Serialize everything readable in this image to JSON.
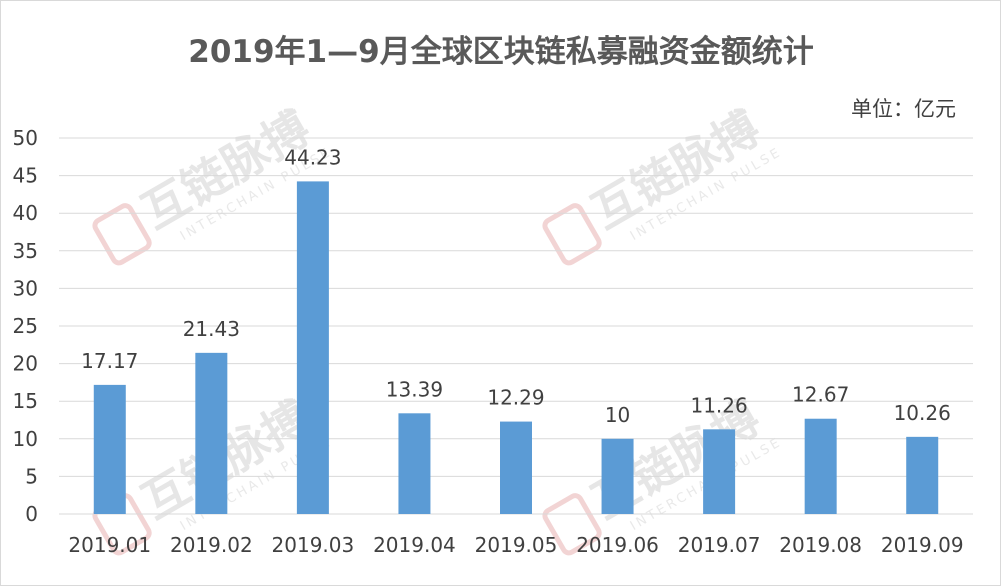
{
  "chart_data": {
    "type": "bar",
    "title": "2019年1—9月全球区块链私募融资金额统计",
    "unit_label": "单位：亿元",
    "categories": [
      "2019.01",
      "2019.02",
      "2019.03",
      "2019.04",
      "2019.05",
      "2019.06",
      "2019.07",
      "2019.08",
      "2019.09"
    ],
    "values": [
      17.17,
      21.43,
      44.23,
      13.39,
      12.29,
      10,
      11.26,
      12.67,
      10.26
    ],
    "data_labels": [
      "17.17",
      "21.43",
      "44.23",
      "13.39",
      "12.29",
      "10",
      "11.26",
      "12.67",
      "10.26"
    ],
    "yticks": [
      "0",
      "5",
      "10",
      "15",
      "20",
      "25",
      "30",
      "35",
      "40",
      "45",
      "50"
    ],
    "ylim": [
      0,
      50
    ],
    "grid": true,
    "legend": "none",
    "bar_color": "#5b9bd5"
  },
  "watermark": {
    "text": "互链脉搏",
    "subtext": "INTERCHAIN PULSE"
  }
}
